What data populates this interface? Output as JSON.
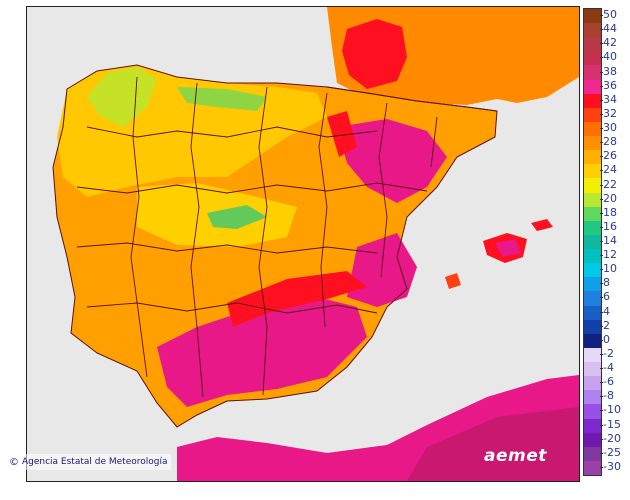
{
  "map": {
    "region": "Iberian Peninsula and Balearic Islands",
    "credit": "Agencia Estatal de Meteorología",
    "logo_text": "aemet",
    "colors": {
      "sea": "#e8e8e8",
      "border_line": "#5a1010",
      "background_land": "#ff9a00"
    }
  },
  "legend": {
    "entries": [
      {
        "label": "50",
        "color": "#8b3a10"
      },
      {
        "label": "44",
        "color": "#a84030"
      },
      {
        "label": "42",
        "color": "#b83848"
      },
      {
        "label": "40",
        "color": "#c83050"
      },
      {
        "label": "38",
        "color": "#d83070"
      },
      {
        "label": "36",
        "color": "#f02890"
      },
      {
        "label": "34",
        "color": "#ff1020"
      },
      {
        "label": "32",
        "color": "#ff4010"
      },
      {
        "label": "30",
        "color": "#ff7000"
      },
      {
        "label": "28",
        "color": "#ff9000"
      },
      {
        "label": "26",
        "color": "#ffb000"
      },
      {
        "label": "24",
        "color": "#ffd000"
      },
      {
        "label": "22",
        "color": "#f0f000"
      },
      {
        "label": "20",
        "color": "#b8e830"
      },
      {
        "label": "18",
        "color": "#60d860"
      },
      {
        "label": "16",
        "color": "#20c880"
      },
      {
        "label": "14",
        "color": "#10b8a0"
      },
      {
        "label": "12",
        "color": "#00c0c0"
      },
      {
        "label": "10",
        "color": "#00c8e8"
      },
      {
        "label": "8",
        "color": "#10a0e8"
      },
      {
        "label": "6",
        "color": "#2080e0"
      },
      {
        "label": "4",
        "color": "#1860c8"
      },
      {
        "label": "2",
        "color": "#1040a8"
      },
      {
        "label": "0",
        "color": "#102080"
      },
      {
        "label": "-2",
        "color": "#e8d8f8"
      },
      {
        "label": "-4",
        "color": "#d8c0f0"
      },
      {
        "label": "-6",
        "color": "#c8a0f0"
      },
      {
        "label": "-8",
        "color": "#b080f0"
      },
      {
        "label": "-10",
        "color": "#9850e8"
      },
      {
        "label": "-15",
        "color": "#8028d0"
      },
      {
        "label": "-20",
        "color": "#7018b0"
      },
      {
        "label": "-25",
        "color": "#8038a0"
      },
      {
        "label": "-30",
        "color": "#9a40a8"
      }
    ]
  }
}
